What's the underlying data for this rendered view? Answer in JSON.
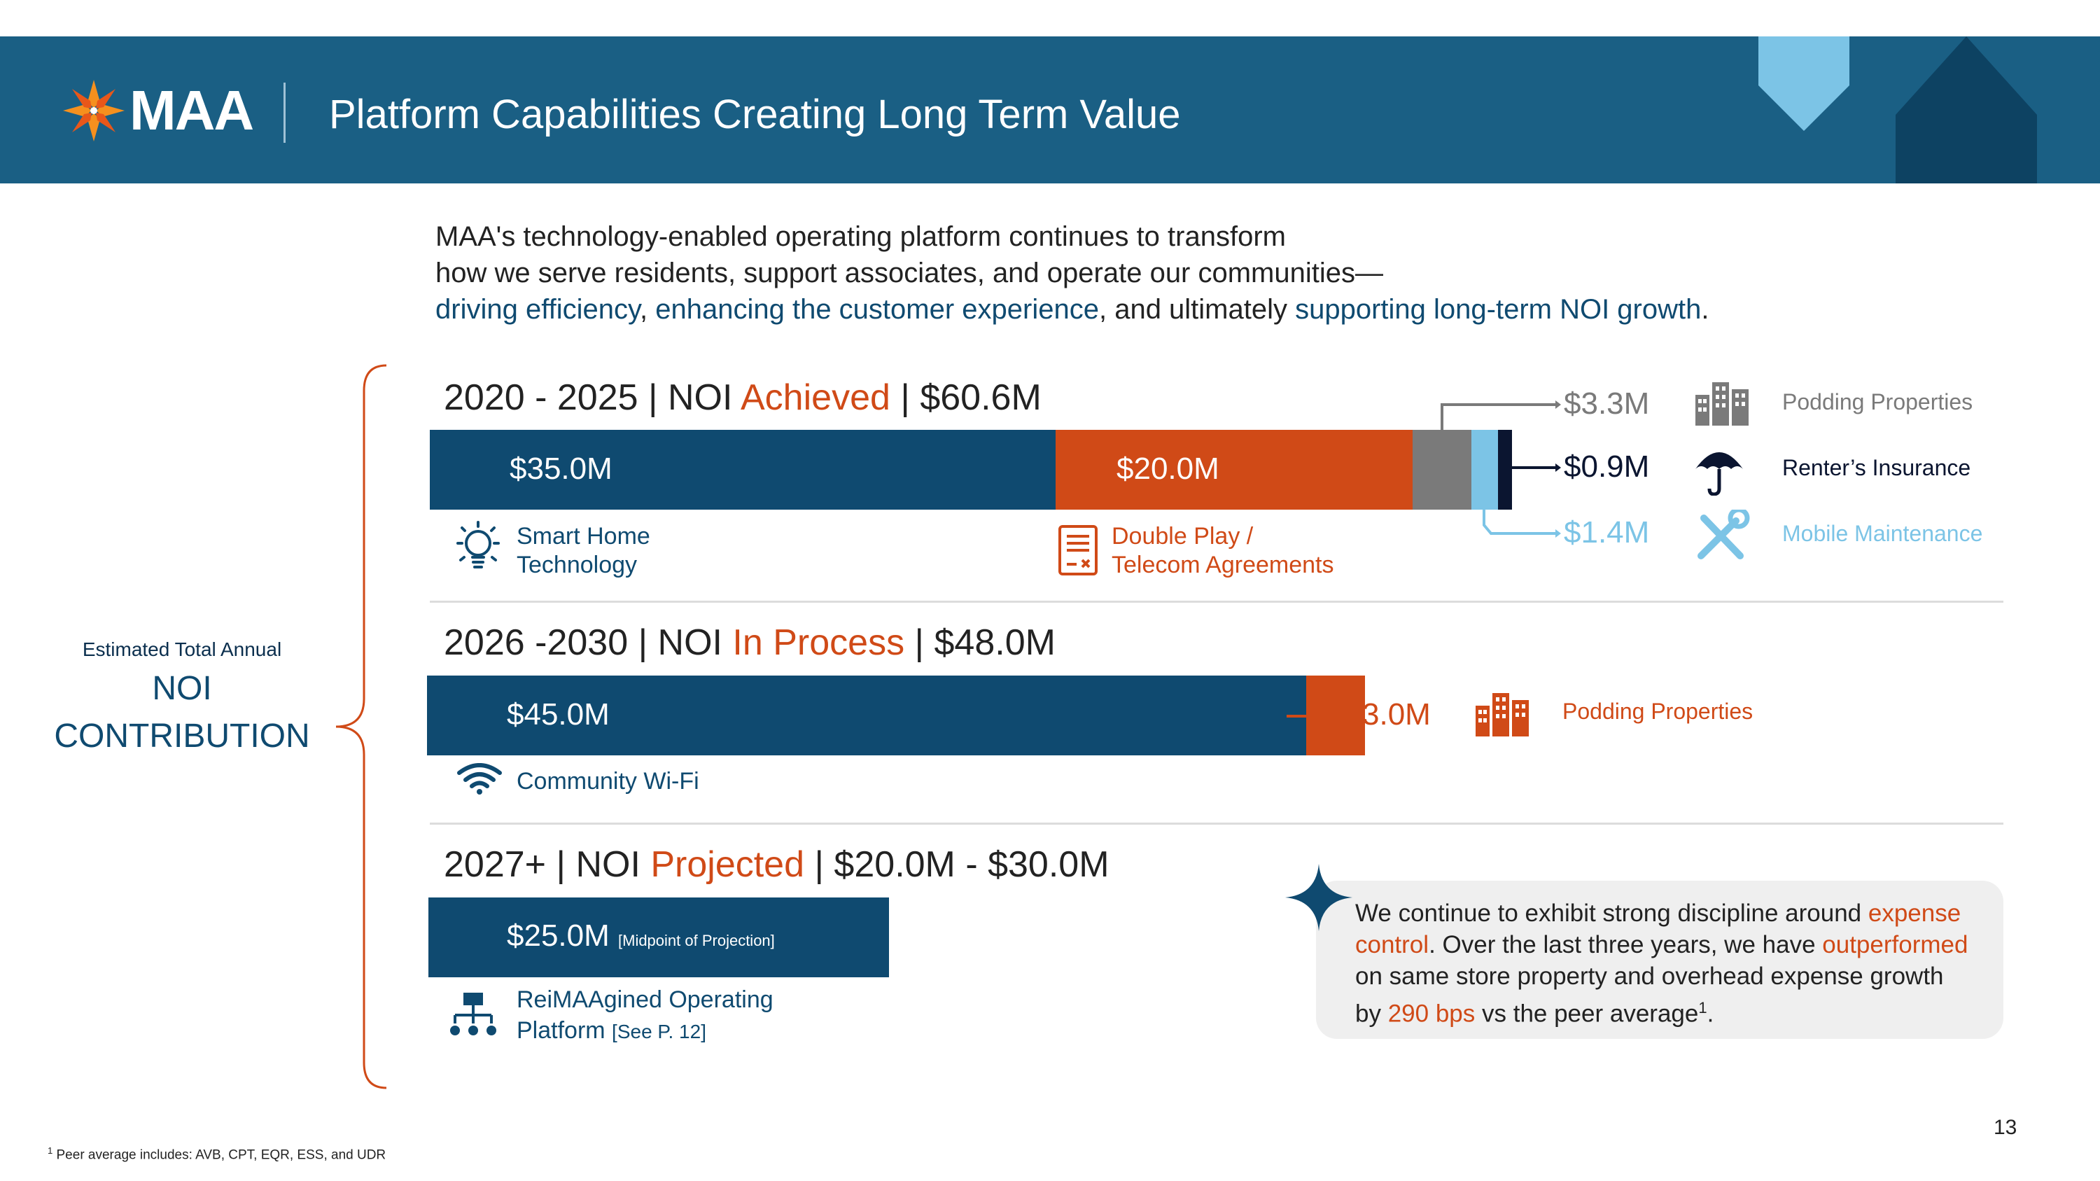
{
  "header": {
    "logo_text": "MAA",
    "title": "Platform Capabilities Creating Long Term Value"
  },
  "intro": {
    "line1": "MAA's technology-enabled operating platform continues to transform",
    "line2": "how we serve residents, support associates, and operate our communities—",
    "line3_part1": "driving efficiency",
    "line3_part2": ", ",
    "line3_part3": "enhancing the customer experience",
    "line3_part4": ", and ultimately ",
    "line3_part5": "supporting long-term NOI growth",
    "line3_part6": "."
  },
  "left_label": {
    "small": "Estimated Total Annual",
    "big_line1": "NOI",
    "big_line2": "CONTRIBUTION"
  },
  "section1": {
    "title_pre": "2020 - 2025 | NOI ",
    "title_status": "Achieved",
    "title_post": " | $60.6M",
    "bar1_label": "$35.0M",
    "bar2_label": "$20.0M",
    "item1_line1": "Smart Home",
    "item1_line2": "Technology",
    "item2_line1": "Double Play /",
    "item2_line2": "Telecom Agreements",
    "callouts": [
      {
        "value": "$3.3M",
        "label": "Podding Properties",
        "color": "#7a7a7a",
        "icon": "building-icon"
      },
      {
        "value": "$0.9M",
        "label": "Renter’s Insurance",
        "color": "#0b1530",
        "icon": "umbrella-icon"
      },
      {
        "value": "$1.4M",
        "label": "Mobile Maintenance",
        "color": "#7cc4e6",
        "icon": "tools-icon"
      }
    ]
  },
  "section2": {
    "title_pre": "2026 -2030 | NOI ",
    "title_status": "In Process",
    "title_post": " | $48.0M",
    "bar1_label": "$45.0M",
    "callout_value": "3.0M",
    "callout_label": "Podding Properties",
    "item1": "Community Wi-Fi"
  },
  "section3": {
    "title_pre": "2027+ | NOI ",
    "title_status": "Projected",
    "title_post": " | $20.0M - $30.0M",
    "bar1_label": "$25.0M",
    "bar1_note": "[Midpoint of Projection]",
    "item1_line1": "ReiMAAgined Operating",
    "item1_line2": "Platform",
    "item1_note": "[See P. 12]"
  },
  "box": {
    "line1_a": "We continue to exhibit strong discipline around ",
    "line1_b": "expense",
    "line2_a": "control",
    "line2_b": ". Over the last three years, we have ",
    "line2_c": "outperformed",
    "line3": "on same store property and overhead expense growth",
    "line4_a": "by ",
    "line4_b": "290 bps",
    "line4_c": " vs the peer average",
    "line4_sup": "1",
    "line4_d": "."
  },
  "footnote": {
    "sup": "1",
    "text": " Peer average includes: AVB, CPT, EQR, ESS, and UDR"
  },
  "page_number": "13",
  "colors": {
    "navy": "#0f4a70",
    "header_blue": "#1a5f84",
    "orange": "#d04a17",
    "gray": "#7a7a7a",
    "light_blue": "#7cc4e6",
    "dark_navy": "#0b1530"
  }
}
